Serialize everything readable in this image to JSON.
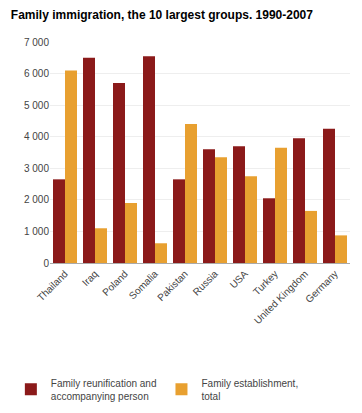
{
  "chart_data": {
    "type": "bar",
    "title": "Family immigration, the 10 largest groups. 1990-2007",
    "categories": [
      "Thailand",
      "Iraq",
      "Poland",
      "Somalia",
      "Pakistan",
      "Russia",
      "USA",
      "Turkey",
      "United Kingdom",
      "Germany"
    ],
    "series": [
      {
        "name": "Family reunification and\naccompanying person",
        "color": "#8B1A1A",
        "values": [
          2650,
          6500,
          5700,
          6550,
          2650,
          3600,
          3700,
          2050,
          3950,
          4250
        ]
      },
      {
        "name": "Family establishment,\ntotal",
        "color": "#E8A030",
        "values": [
          6100,
          1100,
          1900,
          625,
          4400,
          3350,
          2750,
          3650,
          1650,
          875
        ]
      }
    ],
    "ylim": [
      0,
      7000
    ],
    "yticks": [
      0,
      {
        "value": 1000,
        "label": "1 000"
      },
      {
        "value": 2000,
        "label": "2 000"
      },
      {
        "value": 3000,
        "label": "3 000"
      },
      {
        "value": 4000,
        "label": "4 000"
      },
      {
        "value": 5000,
        "label": "5 000"
      },
      {
        "value": 6000,
        "label": "6 000"
      },
      {
        "value": 7000,
        "label": "7 000"
      }
    ],
    "grid": true,
    "legend": "bottom"
  }
}
